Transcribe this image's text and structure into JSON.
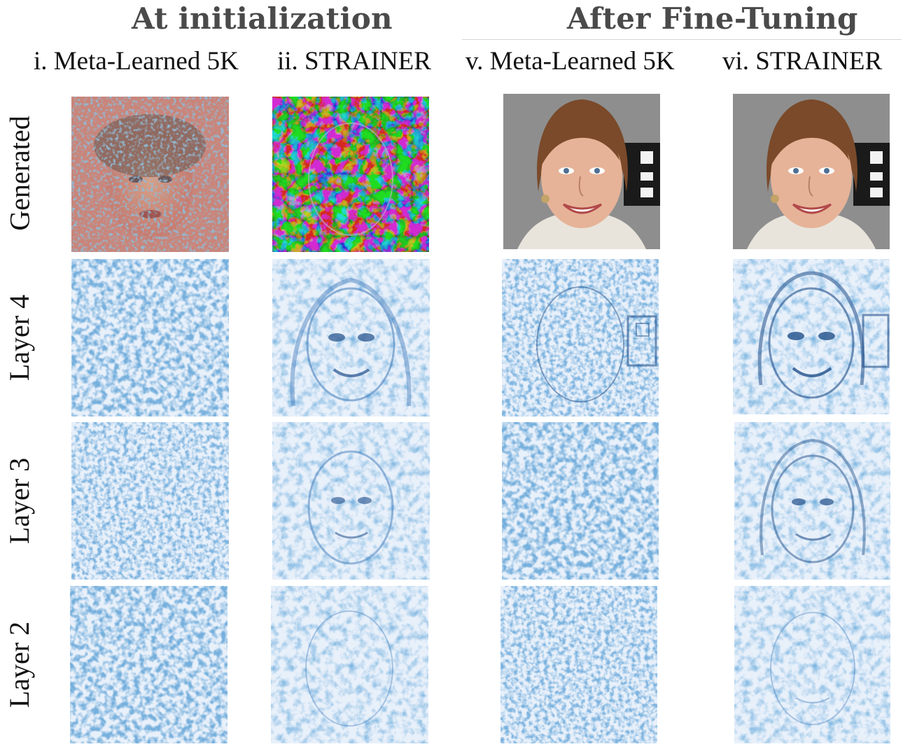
{
  "header": {
    "group_left": "At initialization",
    "group_right": "After Fine-Tuning"
  },
  "columns": [
    {
      "id": "c1",
      "label": "i. Meta-Learned 5K"
    },
    {
      "id": "c2",
      "label": "ii. STRAINER"
    },
    {
      "id": "c3",
      "label": "v. Meta-Learned 5K"
    },
    {
      "id": "c4",
      "label": "vi. STRAINER"
    }
  ],
  "rows": [
    {
      "id": "r0",
      "label": "Generated"
    },
    {
      "id": "r1",
      "label": "Layer 4"
    },
    {
      "id": "r2",
      "label": "Layer 3"
    },
    {
      "id": "r3",
      "label": "Layer 2"
    }
  ],
  "colors": {
    "feature_blue": "#2f6fb4",
    "feature_light": "#eaf2fb",
    "skin": "#d9a58a",
    "hair": "#7a4a2a",
    "background_gray": "#8e8e8e"
  }
}
